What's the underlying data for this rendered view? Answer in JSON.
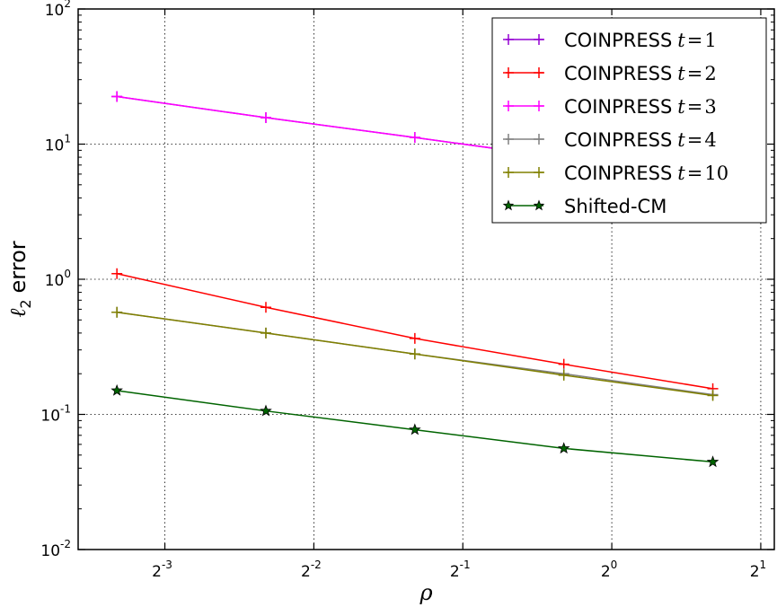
{
  "chart_data": {
    "type": "line",
    "xlabel": "ρ",
    "ylabel_symbol": "ℓ",
    "ylabel_subscript": "2",
    "ylabel_text": "error",
    "x_scale": "log2",
    "y_scale": "log10",
    "xlim": [
      0.0835,
      2.13
    ],
    "ylim": [
      0.01,
      100
    ],
    "x_ticks": [
      {
        "value": 0.125,
        "base": "2",
        "exp": "-3"
      },
      {
        "value": 0.25,
        "base": "2",
        "exp": "-2"
      },
      {
        "value": 0.5,
        "base": "2",
        "exp": "-1"
      },
      {
        "value": 1,
        "base": "2",
        "exp": "0"
      },
      {
        "value": 2,
        "base": "2",
        "exp": "1"
      }
    ],
    "y_ticks": [
      {
        "value": 0.01,
        "base": "10",
        "exp": "-2"
      },
      {
        "value": 0.1,
        "base": "10",
        "exp": "-1"
      },
      {
        "value": 1,
        "base": "10",
        "exp": "0"
      },
      {
        "value": 10,
        "base": "10",
        "exp": "1"
      },
      {
        "value": 100,
        "base": "10",
        "exp": "2"
      }
    ],
    "grid": true,
    "legend_position": "top-right",
    "x": [
      0.1,
      0.2,
      0.4,
      0.8,
      1.6
    ],
    "series": [
      {
        "name_text": "COINPRESS",
        "name_math_var": "t",
        "name_math_op": "=",
        "name_math_val": "1",
        "color": "#9400d3",
        "marker": "plus",
        "values": [
          22.5,
          15.7,
          11.2,
          7.9,
          5.6
        ]
      },
      {
        "name_text": "COINPRESS",
        "name_math_var": "t",
        "name_math_op": "=",
        "name_math_val": "2",
        "color": "#ff0000",
        "marker": "plus",
        "values": [
          1.1,
          0.62,
          0.365,
          0.235,
          0.155
        ]
      },
      {
        "name_text": "COINPRESS",
        "name_math_var": "t",
        "name_math_op": "=",
        "name_math_val": "3",
        "color": "#ff00ff",
        "marker": "plus",
        "values": [
          22.5,
          15.7,
          11.2,
          7.9,
          5.6
        ]
      },
      {
        "name_text": "COINPRESS",
        "name_math_var": "t",
        "name_math_op": "=",
        "name_math_val": "4",
        "color": "#808080",
        "marker": "plus",
        "values": [
          0.57,
          0.4,
          0.28,
          0.2,
          0.14
        ]
      },
      {
        "name_text": "COINPRESS",
        "name_math_var": "t",
        "name_math_op": "=",
        "name_math_val": "10",
        "color": "#808000",
        "marker": "plus",
        "values": [
          0.57,
          0.4,
          0.28,
          0.195,
          0.138
        ]
      },
      {
        "name_text": "Shifted-CM",
        "name_math_var": "",
        "name_math_op": "",
        "name_math_val": "",
        "color": "#006400",
        "marker": "star",
        "values": [
          0.15,
          0.106,
          0.077,
          0.056,
          0.0445
        ]
      }
    ]
  }
}
